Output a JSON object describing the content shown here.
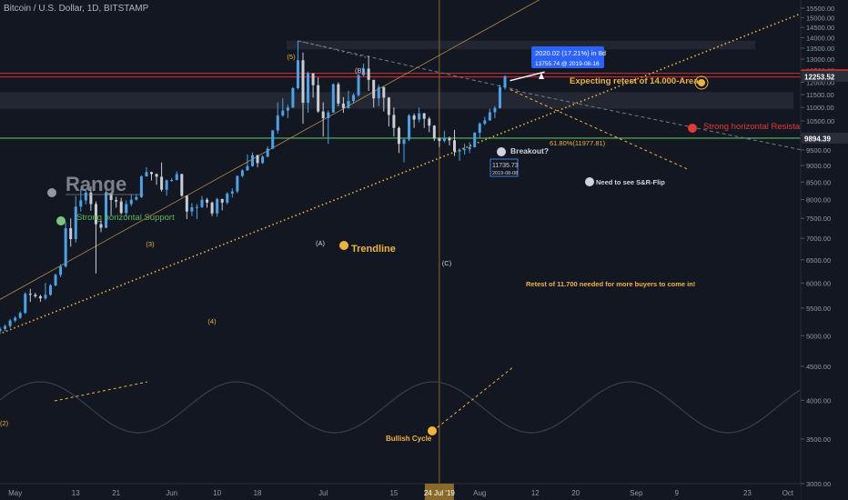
{
  "header": {
    "title": "Bitcoin / U.S. Dollar, 1D, BITSTAMP"
  },
  "colors": {
    "background": "#131722",
    "bull": "#4aa3e8",
    "bear": "#c9ccd1",
    "annotation": "#f0b43c",
    "support": "#5cb85c",
    "resistance": "#d32f2f",
    "axis_text": "#9598a1",
    "range_box": "#2a2e39"
  },
  "chart_data": {
    "type": "candlestick",
    "symbol": "Bitcoin / U.S. Dollar, 1D, BITSTAMP",
    "y_axis": {
      "scale": "log",
      "ticks": [
        3000,
        3500,
        4000,
        4500,
        5000,
        5500,
        6000,
        6500,
        7000,
        7500,
        8000,
        8500,
        9000,
        9500,
        10000,
        10500,
        11000,
        11500,
        12000,
        12500,
        13000,
        13500,
        14000,
        14500,
        15000,
        15500
      ],
      "tick_labels": [
        "3000.00",
        "3500.00",
        "4000.00",
        "4500.00",
        "5000.00",
        "5500.00",
        "6000.00",
        "6500.00",
        "7000.00",
        "7500.00",
        "8000.00",
        "8500.00",
        "9000.00",
        "9500.00",
        "10000.00",
        "10500.00",
        "11000.00",
        "11500.00",
        "12000.00",
        "12500.00",
        "13000.00",
        "13500.00",
        "14000.00",
        "14500.00",
        "15000.00",
        "15500.00"
      ]
    },
    "x_axis": {
      "labels": [
        "May",
        "13",
        "21",
        "Jun",
        "10",
        "18",
        "Jul",
        "15",
        "Aug",
        "12",
        "20",
        "Sep",
        "9",
        "23",
        "Oct"
      ],
      "dates": [
        "2019-05-01",
        "2019-05-13",
        "2019-05-21",
        "2019-06-01",
        "2019-06-10",
        "2019-06-18",
        "2019-07-01",
        "2019-07-15",
        "2019-08-01",
        "2019-08-12",
        "2019-08-20",
        "2019-09-01",
        "2019-09-09",
        "2019-09-23",
        "2019-10-01"
      ],
      "crosshair_label": "24 Jul '19",
      "crosshair_date": "2019-07-24"
    },
    "price_labels": [
      {
        "text": "12317.71",
        "value": 12317.71,
        "style": "red"
      },
      {
        "text": "12253.52",
        "value": 12253.52,
        "style": "dark"
      },
      {
        "text": "9894.39",
        "value": 9894.39,
        "style": "dark"
      }
    ],
    "candles": [
      {
        "d": "2019-04-27",
        "o": 5100,
        "h": 5170,
        "l": 5040,
        "c": 5080
      },
      {
        "d": "2019-04-28",
        "o": 5080,
        "h": 5150,
        "l": 5030,
        "c": 5120
      },
      {
        "d": "2019-04-29",
        "o": 5120,
        "h": 5200,
        "l": 5080,
        "c": 5170
      },
      {
        "d": "2019-04-30",
        "o": 5170,
        "h": 5300,
        "l": 5140,
        "c": 5270
      },
      {
        "d": "2019-05-01",
        "o": 5270,
        "h": 5350,
        "l": 5240,
        "c": 5320
      },
      {
        "d": "2019-05-02",
        "o": 5320,
        "h": 5440,
        "l": 5300,
        "c": 5410
      },
      {
        "d": "2019-05-03",
        "o": 5410,
        "h": 5810,
        "l": 5390,
        "c": 5780
      },
      {
        "d": "2019-05-04",
        "o": 5780,
        "h": 5880,
        "l": 5620,
        "c": 5760
      },
      {
        "d": "2019-05-05",
        "o": 5760,
        "h": 5800,
        "l": 5700,
        "c": 5730
      },
      {
        "d": "2019-05-06",
        "o": 5730,
        "h": 5760,
        "l": 5620,
        "c": 5690
      },
      {
        "d": "2019-05-07",
        "o": 5690,
        "h": 6000,
        "l": 5660,
        "c": 5760
      },
      {
        "d": "2019-05-08",
        "o": 5760,
        "h": 5980,
        "l": 5740,
        "c": 5950
      },
      {
        "d": "2019-05-09",
        "o": 5950,
        "h": 6200,
        "l": 5930,
        "c": 6170
      },
      {
        "d": "2019-05-10",
        "o": 6170,
        "h": 6400,
        "l": 6120,
        "c": 6350
      },
      {
        "d": "2019-05-11",
        "o": 6350,
        "h": 7400,
        "l": 6330,
        "c": 7250
      },
      {
        "d": "2019-05-12",
        "o": 7250,
        "h": 7500,
        "l": 6800,
        "c": 6980
      },
      {
        "d": "2019-05-13",
        "o": 6980,
        "h": 8100,
        "l": 6900,
        "c": 7810
      },
      {
        "d": "2019-05-14",
        "o": 7810,
        "h": 8300,
        "l": 7680,
        "c": 7980
      },
      {
        "d": "2019-05-15",
        "o": 7980,
        "h": 8280,
        "l": 7870,
        "c": 8200
      },
      {
        "d": "2019-05-16",
        "o": 8200,
        "h": 8380,
        "l": 7700,
        "c": 7880
      },
      {
        "d": "2019-05-17",
        "o": 7880,
        "h": 7950,
        "l": 6200,
        "c": 7350
      },
      {
        "d": "2019-05-18",
        "o": 7350,
        "h": 7450,
        "l": 7150,
        "c": 7260
      },
      {
        "d": "2019-05-19",
        "o": 7260,
        "h": 8250,
        "l": 7250,
        "c": 8190
      },
      {
        "d": "2019-05-20",
        "o": 8190,
        "h": 8200,
        "l": 7580,
        "c": 7990
      },
      {
        "d": "2019-05-21",
        "o": 7990,
        "h": 8080,
        "l": 7780,
        "c": 7950
      },
      {
        "d": "2019-05-22",
        "o": 7950,
        "h": 8050,
        "l": 7600,
        "c": 7640
      },
      {
        "d": "2019-05-23",
        "o": 7640,
        "h": 7980,
        "l": 7550,
        "c": 7880
      },
      {
        "d": "2019-05-24",
        "o": 7880,
        "h": 8150,
        "l": 7820,
        "c": 8000
      },
      {
        "d": "2019-05-25",
        "o": 8000,
        "h": 8150,
        "l": 7980,
        "c": 8070
      },
      {
        "d": "2019-05-26",
        "o": 8070,
        "h": 8700,
        "l": 8050,
        "c": 8670
      },
      {
        "d": "2019-05-27",
        "o": 8670,
        "h": 8950,
        "l": 8660,
        "c": 8800
      },
      {
        "d": "2019-05-28",
        "o": 8800,
        "h": 8810,
        "l": 8550,
        "c": 8740
      },
      {
        "d": "2019-05-29",
        "o": 8740,
        "h": 8760,
        "l": 8420,
        "c": 8660
      },
      {
        "d": "2019-05-30",
        "o": 8660,
        "h": 9100,
        "l": 8230,
        "c": 8280
      },
      {
        "d": "2019-05-31",
        "o": 8280,
        "h": 8580,
        "l": 8110,
        "c": 8550
      },
      {
        "d": "2019-06-01",
        "o": 8550,
        "h": 8620,
        "l": 8510,
        "c": 8560
      },
      {
        "d": "2019-06-02",
        "o": 8560,
        "h": 8820,
        "l": 8550,
        "c": 8740
      },
      {
        "d": "2019-06-03",
        "o": 8740,
        "h": 8750,
        "l": 8080,
        "c": 8110
      },
      {
        "d": "2019-06-04",
        "o": 8110,
        "h": 8120,
        "l": 7480,
        "c": 7680
      },
      {
        "d": "2019-06-05",
        "o": 7680,
        "h": 7900,
        "l": 7560,
        "c": 7790
      },
      {
        "d": "2019-06-06",
        "o": 7790,
        "h": 7880,
        "l": 7480,
        "c": 7800
      },
      {
        "d": "2019-06-07",
        "o": 7800,
        "h": 8100,
        "l": 7770,
        "c": 8000
      },
      {
        "d": "2019-06-08",
        "o": 8000,
        "h": 8050,
        "l": 7780,
        "c": 7920
      },
      {
        "d": "2019-06-09",
        "o": 7920,
        "h": 7950,
        "l": 7560,
        "c": 7630
      },
      {
        "d": "2019-06-10",
        "o": 7630,
        "h": 8050,
        "l": 7540,
        "c": 8020
      },
      {
        "d": "2019-06-11",
        "o": 8020,
        "h": 8020,
        "l": 7710,
        "c": 7920
      },
      {
        "d": "2019-06-12",
        "o": 7920,
        "h": 8210,
        "l": 7870,
        "c": 8170
      },
      {
        "d": "2019-06-13",
        "o": 8170,
        "h": 8320,
        "l": 8060,
        "c": 8230
      },
      {
        "d": "2019-06-14",
        "o": 8230,
        "h": 8700,
        "l": 8180,
        "c": 8680
      },
      {
        "d": "2019-06-15",
        "o": 8680,
        "h": 8890,
        "l": 8640,
        "c": 8850
      },
      {
        "d": "2019-06-16",
        "o": 8850,
        "h": 9350,
        "l": 8840,
        "c": 8980
      },
      {
        "d": "2019-06-17",
        "o": 8980,
        "h": 9420,
        "l": 8970,
        "c": 9330
      },
      {
        "d": "2019-06-18",
        "o": 9330,
        "h": 9340,
        "l": 8950,
        "c": 9080
      },
      {
        "d": "2019-06-19",
        "o": 9080,
        "h": 9320,
        "l": 9050,
        "c": 9280
      },
      {
        "d": "2019-06-20",
        "o": 9280,
        "h": 9620,
        "l": 9260,
        "c": 9540
      },
      {
        "d": "2019-06-21",
        "o": 9540,
        "h": 10180,
        "l": 9530,
        "c": 10160
      },
      {
        "d": "2019-06-22",
        "o": 10160,
        "h": 11200,
        "l": 10050,
        "c": 10700
      },
      {
        "d": "2019-06-23",
        "o": 10700,
        "h": 11350,
        "l": 10650,
        "c": 10880
      },
      {
        "d": "2019-06-24",
        "o": 10880,
        "h": 11100,
        "l": 10600,
        "c": 11000
      },
      {
        "d": "2019-06-25",
        "o": 11000,
        "h": 11800,
        "l": 10980,
        "c": 11760
      },
      {
        "d": "2019-06-26",
        "o": 11760,
        "h": 13850,
        "l": 11700,
        "c": 12950
      },
      {
        "d": "2019-06-27",
        "o": 12950,
        "h": 13300,
        "l": 10400,
        "c": 11180
      },
      {
        "d": "2019-06-28",
        "o": 11180,
        "h": 12450,
        "l": 10800,
        "c": 12380
      },
      {
        "d": "2019-06-29",
        "o": 12380,
        "h": 12380,
        "l": 11380,
        "c": 11880
      },
      {
        "d": "2019-06-30",
        "o": 11880,
        "h": 12200,
        "l": 10800,
        "c": 10850
      },
      {
        "d": "2019-07-01",
        "o": 10850,
        "h": 11200,
        "l": 9950,
        "c": 10600
      },
      {
        "d": "2019-07-02",
        "o": 10600,
        "h": 10900,
        "l": 9700,
        "c": 10810
      },
      {
        "d": "2019-07-03",
        "o": 10810,
        "h": 11950,
        "l": 10800,
        "c": 11920
      },
      {
        "d": "2019-07-04",
        "o": 11920,
        "h": 12000,
        "l": 11050,
        "c": 11150
      },
      {
        "d": "2019-07-05",
        "o": 11150,
        "h": 11400,
        "l": 10800,
        "c": 10980
      },
      {
        "d": "2019-07-06",
        "o": 10980,
        "h": 11650,
        "l": 10950,
        "c": 11250
      },
      {
        "d": "2019-07-07",
        "o": 11250,
        "h": 11550,
        "l": 11150,
        "c": 11480
      },
      {
        "d": "2019-07-08",
        "o": 11480,
        "h": 12350,
        "l": 11420,
        "c": 12300
      },
      {
        "d": "2019-07-09",
        "o": 12300,
        "h": 12800,
        "l": 12250,
        "c": 12580
      },
      {
        "d": "2019-07-10",
        "o": 12580,
        "h": 13150,
        "l": 11650,
        "c": 12100
      },
      {
        "d": "2019-07-11",
        "o": 12100,
        "h": 12100,
        "l": 11000,
        "c": 11350
      },
      {
        "d": "2019-07-12",
        "o": 11350,
        "h": 11900,
        "l": 11050,
        "c": 11800
      },
      {
        "d": "2019-07-13",
        "o": 11800,
        "h": 11820,
        "l": 10850,
        "c": 11380
      },
      {
        "d": "2019-07-14",
        "o": 11380,
        "h": 11400,
        "l": 10300,
        "c": 10720
      },
      {
        "d": "2019-07-15",
        "o": 10720,
        "h": 11000,
        "l": 9950,
        "c": 10250
      },
      {
        "d": "2019-07-16",
        "o": 10250,
        "h": 10300,
        "l": 9400,
        "c": 9700
      },
      {
        "d": "2019-07-17",
        "o": 9700,
        "h": 9900,
        "l": 9100,
        "c": 9850
      },
      {
        "d": "2019-07-18",
        "o": 9850,
        "h": 10750,
        "l": 9800,
        "c": 10700
      },
      {
        "d": "2019-07-19",
        "o": 10700,
        "h": 10780,
        "l": 10250,
        "c": 10550
      },
      {
        "d": "2019-07-20",
        "o": 10550,
        "h": 11000,
        "l": 10450,
        "c": 10780
      },
      {
        "d": "2019-07-21",
        "o": 10780,
        "h": 10800,
        "l": 10250,
        "c": 10580
      },
      {
        "d": "2019-07-22",
        "o": 10580,
        "h": 10650,
        "l": 10100,
        "c": 10330
      },
      {
        "d": "2019-07-23",
        "o": 10330,
        "h": 10350,
        "l": 9800,
        "c": 9880
      },
      {
        "d": "2019-07-24",
        "o": 9880,
        "h": 9920,
        "l": 9600,
        "c": 9800
      },
      {
        "d": "2019-07-25",
        "o": 9800,
        "h": 10150,
        "l": 9750,
        "c": 9900
      },
      {
        "d": "2019-07-26",
        "o": 9900,
        "h": 9950,
        "l": 9650,
        "c": 9820
      },
      {
        "d": "2019-07-27",
        "o": 9820,
        "h": 10180,
        "l": 9300,
        "c": 9450
      },
      {
        "d": "2019-07-28",
        "o": 9450,
        "h": 9550,
        "l": 9150,
        "c": 9500
      },
      {
        "d": "2019-07-29",
        "o": 9500,
        "h": 9700,
        "l": 9350,
        "c": 9520
      },
      {
        "d": "2019-07-30",
        "o": 9520,
        "h": 9750,
        "l": 9400,
        "c": 9590
      },
      {
        "d": "2019-07-31",
        "o": 9590,
        "h": 10100,
        "l": 9580,
        "c": 10080
      },
      {
        "d": "2019-08-01",
        "o": 10080,
        "h": 10450,
        "l": 9900,
        "c": 10400
      },
      {
        "d": "2019-08-02",
        "o": 10400,
        "h": 10650,
        "l": 10350,
        "c": 10520
      },
      {
        "d": "2019-08-03",
        "o": 10520,
        "h": 10950,
        "l": 10500,
        "c": 10820
      },
      {
        "d": "2019-08-04",
        "o": 10820,
        "h": 11050,
        "l": 10600,
        "c": 10980
      },
      {
        "d": "2019-08-05",
        "o": 10980,
        "h": 11900,
        "l": 10950,
        "c": 11800
      },
      {
        "d": "2019-08-06",
        "o": 11800,
        "h": 12300,
        "l": 11700,
        "c": 12250
      }
    ],
    "horizontal_levels": [
      {
        "label": "Strong horizontal Resistance",
        "value": 12317.71
      },
      {
        "label": "Strong horizontal Support",
        "value": 9894.39
      }
    ],
    "range_box": {
      "label": "Range",
      "high": 11600,
      "low": 10950
    },
    "target_box": {
      "label": "Expecting retest of 14.000-Area",
      "high": 13850,
      "low": 13450
    },
    "fib_label": "61.80%(11977.81)",
    "wave_labels": [
      "(3)",
      "(4)",
      "(5)",
      "(A)",
      "(B)",
      "(C)"
    ],
    "annotations": {
      "trendline": "Trendline",
      "breakout": "Breakout?",
      "flip": "Need to see S&R-Flip",
      "retest": "Retest of 11.700 needed for more buyers to come in!",
      "cycle": "Bullish Cycle",
      "measure_main": "2020.02 (17.21%) in 8d",
      "measure_sub": "13755.74 @ 2019-08-16",
      "price_box_main": "11735.73",
      "price_box_sub": "2019-08-08"
    }
  }
}
